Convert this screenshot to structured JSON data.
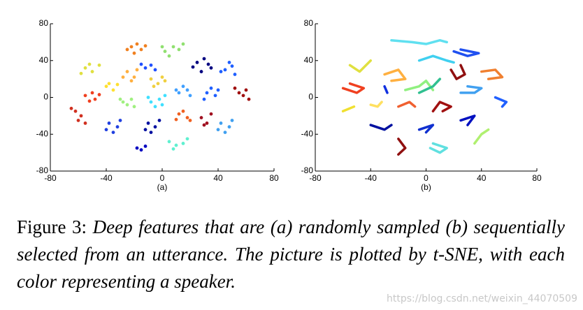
{
  "chart_data": [
    {
      "type": "scatter",
      "label": "(a)",
      "xlim": [
        -80,
        80
      ],
      "ylim": [
        -80,
        80
      ],
      "xticks": [
        -80,
        -40,
        0,
        40,
        80
      ],
      "yticks": [
        -80,
        -40,
        0,
        40,
        80
      ],
      "series": [
        {
          "color": "#f08020",
          "x": [
            -22,
            -18,
            -25,
            -15,
            -20,
            -12
          ],
          "y": [
            55,
            58,
            52,
            52,
            48,
            56
          ]
        },
        {
          "color": "#90e070",
          "x": [
            2,
            8,
            5,
            12,
            0,
            15
          ],
          "y": [
            50,
            55,
            45,
            52,
            55,
            58
          ]
        },
        {
          "color": "#000080",
          "x": [
            25,
            30,
            35,
            28,
            22,
            33
          ],
          "y": [
            38,
            42,
            32,
            28,
            33,
            36
          ]
        },
        {
          "color": "#1f5fff",
          "x": [
            45,
            50,
            42,
            52,
            48
          ],
          "y": [
            30,
            34,
            28,
            25,
            38
          ]
        },
        {
          "color": "#e0e040",
          "x": [
            -55,
            -50,
            -45,
            -52,
            -58
          ],
          "y": [
            32,
            28,
            35,
            36,
            26
          ]
        },
        {
          "color": "#ffb040",
          "x": [
            -25,
            -20,
            -28,
            -18,
            -22
          ],
          "y": [
            28,
            22,
            22,
            30,
            18
          ]
        },
        {
          "color": "#f0d040",
          "x": [
            -8,
            -3,
            0,
            -6,
            2
          ],
          "y": [
            20,
            15,
            22,
            12,
            18
          ]
        },
        {
          "color": "#2050ff",
          "x": [
            -12,
            -8,
            -15,
            -5
          ],
          "y": [
            32,
            35,
            36,
            30
          ]
        },
        {
          "color": "#f04020",
          "x": [
            -55,
            -50,
            -48,
            -52,
            -45
          ],
          "y": [
            2,
            5,
            -2,
            -4,
            3
          ]
        },
        {
          "color": "#ffe030",
          "x": [
            -40,
            -35,
            -38,
            -32
          ],
          "y": [
            12,
            8,
            15,
            14
          ]
        },
        {
          "color": "#a0f080",
          "x": [
            -28,
            -22,
            -25,
            -20,
            -30
          ],
          "y": [
            -5,
            -2,
            -8,
            -10,
            -2
          ]
        },
        {
          "color": "#40e0ff",
          "x": [
            -8,
            -2,
            -5,
            0,
            -10,
            2
          ],
          "y": [
            -5,
            -2,
            -10,
            -8,
            0,
            2
          ]
        },
        {
          "color": "#40a0ff",
          "x": [
            12,
            18,
            15,
            20,
            10
          ],
          "y": [
            5,
            8,
            12,
            2,
            8
          ]
        },
        {
          "color": "#2060ff",
          "x": [
            32,
            38,
            35,
            40,
            30
          ],
          "y": [
            5,
            2,
            10,
            8,
            -2
          ]
        },
        {
          "color": "#a01010",
          "x": [
            55,
            60,
            58,
            62,
            52
          ],
          "y": [
            5,
            8,
            2,
            -2,
            10
          ]
        },
        {
          "color": "#d03020",
          "x": [
            -62,
            -58,
            -60,
            -55,
            -65
          ],
          "y": [
            -15,
            -20,
            -25,
            -28,
            -12
          ]
        },
        {
          "color": "#2040e0",
          "x": [
            -38,
            -32,
            -35,
            -30,
            -40
          ],
          "y": [
            -28,
            -32,
            -38,
            -25,
            -35
          ]
        },
        {
          "color": "#0010a0",
          "x": [
            -10,
            -5,
            -12,
            -2,
            -8
          ],
          "y": [
            -28,
            -32,
            -35,
            -25,
            -38
          ]
        },
        {
          "color": "#f06020",
          "x": [
            12,
            18,
            15,
            20,
            10
          ],
          "y": [
            -18,
            -22,
            -15,
            -25,
            -24
          ]
        },
        {
          "color": "#a01020",
          "x": [
            28,
            32,
            30,
            35
          ],
          "y": [
            -22,
            -28,
            -30,
            -18
          ]
        },
        {
          "color": "#40a0f0",
          "x": [
            42,
            48,
            45,
            50,
            40
          ],
          "y": [
            -28,
            -32,
            -38,
            -25,
            -35
          ]
        },
        {
          "color": "#60f0d0",
          "x": [
            5,
            10,
            15,
            8,
            18
          ],
          "y": [
            -48,
            -52,
            -50,
            -56,
            -45
          ]
        },
        {
          "color": "#0000c0",
          "x": [
            -18,
            -15,
            -12
          ],
          "y": [
            -55,
            -57,
            -53
          ]
        }
      ]
    },
    {
      "type": "line",
      "label": "(b)",
      "xlim": [
        -80,
        80
      ],
      "ylim": [
        -80,
        80
      ],
      "xticks": [
        -80,
        -40,
        0,
        40,
        80
      ],
      "yticks": [
        -80,
        -40,
        0,
        40,
        80
      ],
      "series": [
        {
          "color": "#60e0f0",
          "x": [
            -25,
            -10,
            0,
            10,
            15
          ],
          "y": [
            62,
            60,
            58,
            62,
            60
          ]
        },
        {
          "color": "#40d0f0",
          "x": [
            -5,
            5,
            15,
            20
          ],
          "y": [
            40,
            45,
            40,
            38
          ]
        },
        {
          "color": "#2050f0",
          "x": [
            20,
            30,
            38,
            25
          ],
          "y": [
            50,
            45,
            48,
            52
          ]
        },
        {
          "color": "#e0e040",
          "x": [
            -55,
            -48,
            -40
          ],
          "y": [
            35,
            28,
            40
          ]
        },
        {
          "color": "#ffb040",
          "x": [
            -30,
            -20,
            -15,
            -25
          ],
          "y": [
            25,
            30,
            20,
            18
          ]
        },
        {
          "color": "#901010",
          "x": [
            18,
            22,
            28,
            25
          ],
          "y": [
            30,
            20,
            25,
            35
          ]
        },
        {
          "color": "#f08030",
          "x": [
            40,
            50,
            55,
            45
          ],
          "y": [
            28,
            30,
            22,
            20
          ]
        },
        {
          "color": "#1030e0",
          "x": [
            -30,
            -28
          ],
          "y": [
            12,
            5
          ]
        },
        {
          "color": "#90f080",
          "x": [
            -15,
            -5,
            0,
            5
          ],
          "y": [
            8,
            12,
            18,
            8
          ]
        },
        {
          "color": "#30c090",
          "x": [
            -5,
            5,
            10
          ],
          "y": [
            5,
            12,
            20
          ]
        },
        {
          "color": "#f04020",
          "x": [
            -60,
            -50,
            -45,
            -55
          ],
          "y": [
            10,
            5,
            10,
            15
          ]
        },
        {
          "color": "#40a0f0",
          "x": [
            25,
            35,
            40,
            30
          ],
          "y": [
            5,
            5,
            10,
            12
          ]
        },
        {
          "color": "#2060ff",
          "x": [
            50,
            58,
            55
          ],
          "y": [
            0,
            -5,
            -10
          ]
        },
        {
          "color": "#f0e030",
          "x": [
            -60,
            -52
          ],
          "y": [
            -15,
            -10
          ]
        },
        {
          "color": "#ffe060",
          "x": [
            -40,
            -35,
            -32
          ],
          "y": [
            -8,
            -10,
            -5
          ]
        },
        {
          "color": "#f06030",
          "x": [
            -20,
            -12,
            -8
          ],
          "y": [
            -10,
            -5,
            -10
          ]
        },
        {
          "color": "#a01010",
          "x": [
            5,
            10,
            18,
            12
          ],
          "y": [
            -15,
            -5,
            -10,
            -15
          ]
        },
        {
          "color": "#0010a0",
          "x": [
            -40,
            -30,
            -25
          ],
          "y": [
            -30,
            -35,
            -30
          ]
        },
        {
          "color": "#1030d0",
          "x": [
            -5,
            5,
            0
          ],
          "y": [
            -35,
            -30,
            -38
          ]
        },
        {
          "color": "#0010c0",
          "x": [
            25,
            35,
            30
          ],
          "y": [
            -25,
            -20,
            -30
          ]
        },
        {
          "color": "#901010",
          "x": [
            -20,
            -15,
            -20
          ],
          "y": [
            -45,
            -55,
            -62
          ]
        },
        {
          "color": "#60e0e0",
          "x": [
            5,
            15,
            10,
            3
          ],
          "y": [
            -50,
            -55,
            -60,
            -55
          ]
        },
        {
          "color": "#b0f070",
          "x": [
            35,
            40,
            45
          ],
          "y": [
            -50,
            -40,
            -35
          ]
        }
      ]
    }
  ],
  "caption": {
    "label": "Figure 3:",
    "text": "Deep features that are (a) randomly sampled (b) sequentially selected from an utterance. The picture is plotted by t-SNE, with each color representing a speaker."
  },
  "watermark": "https://blog.csdn.net/weixin_44070509"
}
